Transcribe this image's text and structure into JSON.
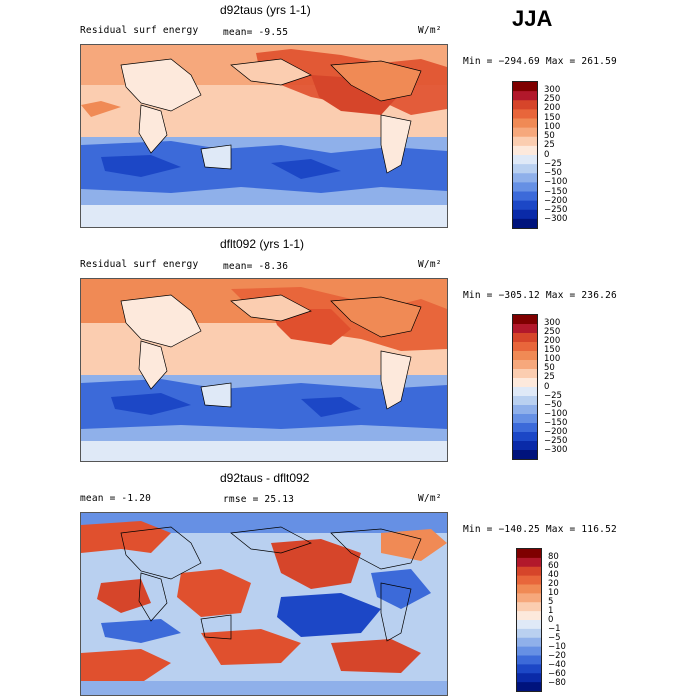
{
  "season": "JJA",
  "panels": [
    {
      "title": "d92taus (yrs 1-1)",
      "left_label": "Residual surf energy",
      "stat_label": "mean=  -9.55",
      "units": "W/m²",
      "minmax": "Min = −294.69  Max = 261.59",
      "colorbar_labels": [
        "300",
        "250",
        "200",
        "150",
        "100",
        "50",
        "25",
        "0",
        "−25",
        "−50",
        "−100",
        "−150",
        "−200",
        "−250",
        "−300"
      ]
    },
    {
      "title": "dflt092 (yrs 1-1)",
      "left_label": "Residual surf energy",
      "stat_label": "mean=  -8.36",
      "units": "W/m²",
      "minmax": "Min = −305.12  Max = 236.26",
      "colorbar_labels": [
        "300",
        "250",
        "200",
        "150",
        "100",
        "50",
        "25",
        "0",
        "−25",
        "−50",
        "−100",
        "−150",
        "−200",
        "−250",
        "−300"
      ]
    },
    {
      "title": "d92taus - dflt092",
      "left_label": "mean =  -1.20",
      "stat_label": "rmse =  25.13",
      "units": "W/m²",
      "minmax": "Min = −140.25  Max = 116.52",
      "colorbar_labels": [
        "80",
        "60",
        "40",
        "20",
        "10",
        "5",
        "1",
        "0",
        "−1",
        "−5",
        "−10",
        "−20",
        "−40",
        "−60",
        "−80"
      ]
    }
  ],
  "colors": {
    "colorbar": [
      "#7f0000",
      "#b2182b",
      "#d6452a",
      "#e8663b",
      "#f08a55",
      "#f6a87c",
      "#fbcdb0",
      "#fde9dc",
      "#dfe9f7",
      "#b9d0f0",
      "#8fb0ea",
      "#6690e4",
      "#3c6ad9",
      "#1c47c6",
      "#0a2aa8",
      "#00137c"
    ],
    "pos_strong": "#e0502e",
    "pos_mid": "#f08a55",
    "pos_light": "#fbcdb0",
    "land": "#fde9dc",
    "neg_light": "#b9d0f0",
    "neg_mid": "#6690e4",
    "neg_strong": "#2c54cf",
    "ice": "#dfe9f7"
  }
}
